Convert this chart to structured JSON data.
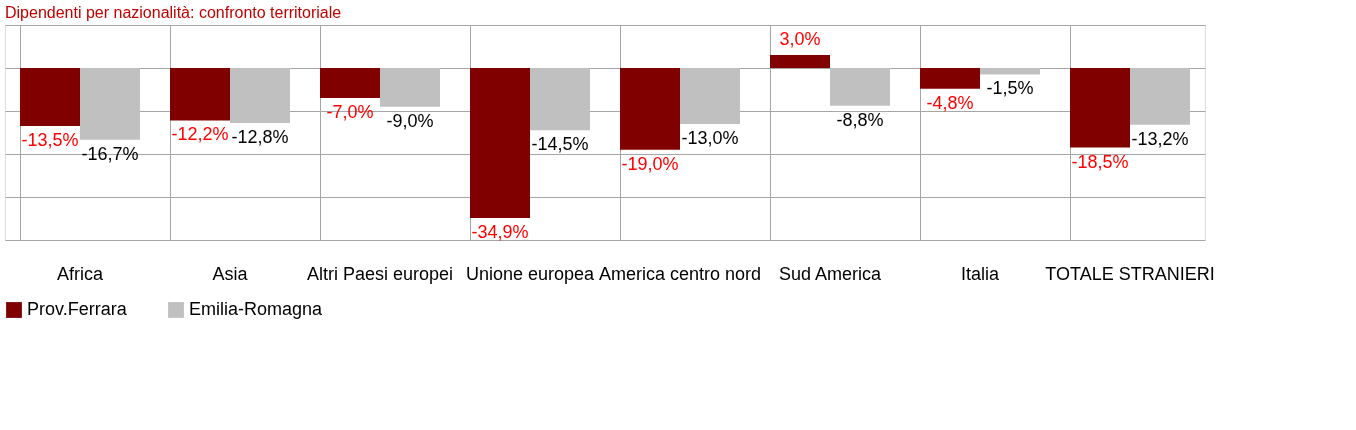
{
  "chart_data": {
    "type": "bar",
    "title": "Dipendenti per nazionalità: confronto territoriale",
    "categories": [
      "Africa",
      "Asia",
      "Altri Paesi europei",
      "Unione europea",
      "America centro nord",
      "Sud America",
      "Italia",
      "TOTALE STRANIERI"
    ],
    "series": [
      {
        "name": "Prov.Ferrara",
        "color": "#800000",
        "values": [
          -13.5,
          -12.2,
          -7.0,
          -34.9,
          -19.0,
          3.0,
          -4.8,
          -18.5
        ],
        "value_labels": [
          "-13,5%",
          "-12,2%",
          "-7,0%",
          "-34,9%",
          "-19,0%",
          "3,0%",
          "-4,8%",
          "-18,5%"
        ]
      },
      {
        "name": "Emilia-Romagna",
        "color": "#c0c0c0",
        "values": [
          -16.7,
          -12.8,
          -9.0,
          -14.5,
          -13.0,
          -8.8,
          -1.5,
          -13.2
        ],
        "value_labels": [
          "-16,7%",
          "-12,8%",
          "-9,0%",
          "-14,5%",
          "-13,0%",
          "-8,8%",
          "-1,5%",
          "-13,2%"
        ]
      }
    ],
    "ylim": [
      -40,
      10
    ],
    "yticks": [
      10,
      0,
      -10,
      -20,
      -30,
      -40
    ],
    "tick_labels": "x",
    "grid": true,
    "legend": "bottom"
  }
}
